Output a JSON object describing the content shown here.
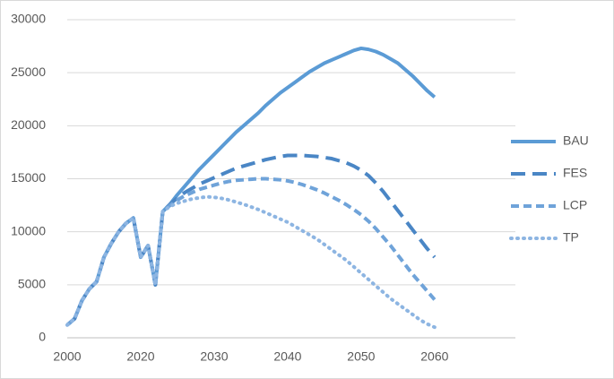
{
  "chart_data": {
    "type": "line",
    "categories": [
      "2000",
      null,
      null,
      null,
      null,
      null,
      null,
      null,
      null,
      null,
      "2020",
      null,
      null,
      null,
      null,
      null,
      null,
      null,
      null,
      null,
      "2030",
      null,
      null,
      null,
      null,
      null,
      null,
      null,
      null,
      null,
      "2040",
      null,
      null,
      null,
      null,
      null,
      null,
      null,
      null,
      null,
      "2050",
      null,
      null,
      null,
      null,
      null,
      null,
      null,
      null,
      null,
      "2060",
      null,
      null,
      null,
      null,
      null,
      null,
      null,
      null,
      null,
      null,
      null
    ],
    "ylim": [
      0,
      30000
    ],
    "yticks": [
      0,
      5000,
      10000,
      15000,
      20000,
      25000,
      30000
    ],
    "grid": true,
    "legend": "right",
    "series": [
      {
        "name": "BAU",
        "color": "#5b9bd5",
        "dash": "solid",
        "values": [
          1200,
          1800,
          3500,
          4600,
          5300,
          7600,
          8900,
          10000,
          10800,
          11300,
          7600,
          8700,
          5000,
          11900,
          12600,
          13500,
          14300,
          15100,
          15900,
          16600,
          17300,
          18000,
          18700,
          19400,
          20000,
          20600,
          21200,
          21900,
          22500,
          23100,
          23600,
          24100,
          24600,
          25100,
          25500,
          25900,
          26200,
          26500,
          26800,
          27100,
          27300,
          27200,
          27000,
          26700,
          26300,
          25900,
          25300,
          24700,
          24000,
          23300,
          22700,
          null,
          null,
          null,
          null,
          null,
          null,
          null,
          null,
          null,
          null,
          null
        ]
      },
      {
        "name": "FES",
        "color": "#4a86c5",
        "dash": "long",
        "values": [
          1200,
          1800,
          3500,
          4600,
          5300,
          7600,
          8900,
          10000,
          10800,
          11300,
          7600,
          8700,
          5000,
          11900,
          12600,
          13200,
          13700,
          14100,
          14500,
          14800,
          15100,
          15400,
          15700,
          16000,
          16200,
          16400,
          16600,
          16800,
          16950,
          17100,
          17200,
          17200,
          17200,
          17150,
          17100,
          17000,
          16900,
          16700,
          16500,
          16200,
          15800,
          15300,
          14600,
          13800,
          12900,
          12000,
          11100,
          10200,
          9300,
          8400,
          7600,
          null,
          null,
          null,
          null,
          null,
          null,
          null,
          null,
          null,
          null,
          null
        ]
      },
      {
        "name": "LCP",
        "color": "#6fa3d9",
        "dash": "short",
        "values": [
          1200,
          1800,
          3500,
          4600,
          5300,
          7600,
          8900,
          10000,
          10800,
          11300,
          7600,
          8700,
          5000,
          11900,
          12500,
          13000,
          13400,
          13700,
          14000,
          14200,
          14400,
          14600,
          14750,
          14850,
          14900,
          14950,
          15000,
          15000,
          14950,
          14900,
          14800,
          14650,
          14450,
          14200,
          13950,
          13650,
          13300,
          12950,
          12550,
          12100,
          11600,
          11000,
          10300,
          9500,
          8700,
          7800,
          6900,
          6000,
          5200,
          4400,
          3600,
          null,
          null,
          null,
          null,
          null,
          null,
          null,
          null,
          null,
          null,
          null
        ]
      },
      {
        "name": "TP",
        "color": "#8db5e2",
        "dash": "dot",
        "values": [
          1200,
          1800,
          3500,
          4600,
          5300,
          7600,
          8900,
          10000,
          10800,
          11300,
          7600,
          8700,
          5000,
          11900,
          12400,
          12700,
          12900,
          13100,
          13200,
          13300,
          13250,
          13150,
          13000,
          12800,
          12600,
          12350,
          12100,
          11800,
          11500,
          11200,
          10900,
          10500,
          10100,
          9700,
          9300,
          8800,
          8300,
          7800,
          7300,
          6700,
          6100,
          5500,
          4900,
          4300,
          3700,
          3200,
          2700,
          2200,
          1700,
          1300,
          1000,
          null,
          null,
          null,
          null,
          null,
          null,
          null,
          null,
          null,
          null,
          null
        ]
      }
    ]
  }
}
